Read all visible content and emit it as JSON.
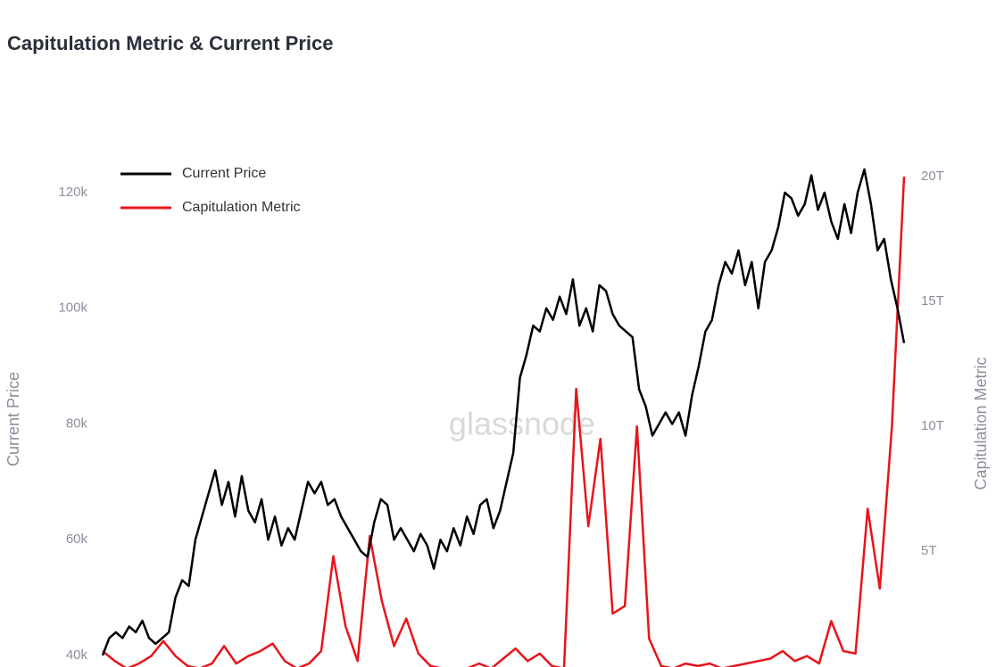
{
  "chart_data": {
    "type": "line",
    "title": "Capitulation Metric & Current Price",
    "watermark": "glassnode",
    "y_label": "Current Price",
    "y2_label": "Capitulation Metric",
    "ylim": [
      38000,
      124000
    ],
    "yticks": [
      {
        "value": 40000,
        "label": "40k"
      },
      {
        "value": 60000,
        "label": "60k"
      },
      {
        "value": 80000,
        "label": "80k"
      },
      {
        "value": 100000,
        "label": "100k"
      },
      {
        "value": 120000,
        "label": "120k"
      }
    ],
    "y2lim": [
      360000000000.0,
      20290000000000.0
    ],
    "y2ticks": [
      {
        "value": 5000000000000.0,
        "label": "5T"
      },
      {
        "value": 10000000000000.0,
        "label": "10T"
      },
      {
        "value": 15000000000000.0,
        "label": "15T"
      },
      {
        "value": 20000000000000.0,
        "label": "20T"
      }
    ],
    "legend": "top-left",
    "series": [
      {
        "name": "Current Price",
        "color": "#000000",
        "axis": "y",
        "values": [
          40000,
          43000,
          44000,
          43000,
          45000,
          44000,
          46000,
          43000,
          42000,
          43000,
          44000,
          50000,
          53000,
          52000,
          60000,
          64000,
          68000,
          72000,
          66000,
          70000,
          64000,
          71000,
          65000,
          63000,
          67000,
          60000,
          64000,
          59000,
          62000,
          60000,
          65000,
          70000,
          68000,
          70000,
          66000,
          67000,
          64000,
          62000,
          60000,
          58000,
          57000,
          63000,
          67000,
          66000,
          60000,
          62000,
          60000,
          58000,
          61000,
          59000,
          55000,
          60000,
          58000,
          62000,
          59000,
          64000,
          61000,
          66000,
          67000,
          62000,
          65000,
          70000,
          75000,
          88000,
          92000,
          97000,
          96000,
          100000,
          98000,
          102000,
          99000,
          105000,
          97000,
          100000,
          96000,
          104000,
          103000,
          99000,
          97000,
          96000,
          95000,
          86000,
          83000,
          78000,
          80000,
          82000,
          80000,
          82000,
          78000,
          85000,
          90000,
          96000,
          98000,
          104000,
          108000,
          106000,
          110000,
          104000,
          108000,
          100000,
          108000,
          110000,
          114000,
          120000,
          119000,
          116000,
          118000,
          123000,
          117000,
          120000,
          115000,
          112000,
          118000,
          113000,
          120000,
          124000,
          118000,
          110000,
          112000,
          105000,
          100000,
          94000
        ]
      },
      {
        "name": "Capitulation Metric",
        "color": "#e8141b",
        "axis": "y2",
        "values": [
          1000000000000.0,
          600000000000.0,
          300000000000.0,
          500000000000.0,
          800000000000.0,
          1400000000000.0,
          800000000000.0,
          400000000000.0,
          300000000000.0,
          500000000000.0,
          1200000000000.0,
          500000000000.0,
          800000000000.0,
          1000000000000.0,
          1300000000000.0,
          600000000000.0,
          300000000000.0,
          500000000000.0,
          1000000000000.0,
          4800000000000.0,
          2000000000000.0,
          600000000000.0,
          5600000000000.0,
          3000000000000.0,
          1200000000000.0,
          2300000000000.0,
          900000000000.0,
          400000000000.0,
          300000000000.0,
          200000000000.0,
          300000000000.0,
          500000000000.0,
          300000000000.0,
          700000000000.0,
          1100000000000.0,
          600000000000.0,
          900000000000.0,
          400000000000.0,
          300000000000.0,
          11500000000000.0,
          6000000000000.0,
          9500000000000.0,
          2500000000000.0,
          2800000000000.0,
          10000000000000.0,
          1500000000000.0,
          400000000000.0,
          300000000000.0,
          500000000000.0,
          400000000000.0,
          500000000000.0,
          300000000000.0,
          400000000000.0,
          500000000000.0,
          600000000000.0,
          700000000000.0,
          1000000000000.0,
          600000000000.0,
          800000000000.0,
          500000000000.0,
          2200000000000.0,
          1000000000000.0,
          900000000000.0,
          6700000000000.0,
          3500000000000.0,
          10000000000000.0,
          20000000000000.0
        ]
      }
    ]
  }
}
